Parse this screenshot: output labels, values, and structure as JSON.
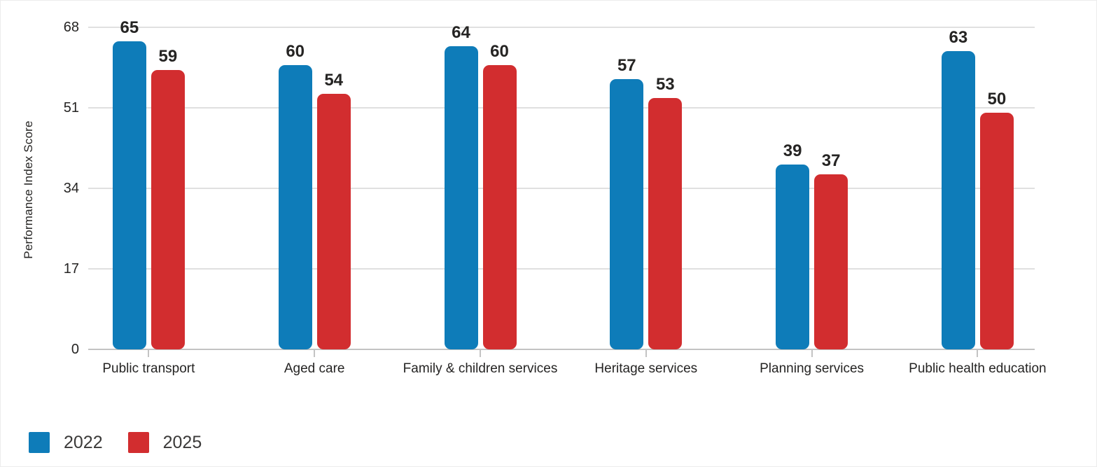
{
  "chart_data": {
    "type": "bar",
    "title": "",
    "xlabel": "",
    "ylabel": "Performance Index Score",
    "categories": [
      "Public transport",
      "Aged care",
      "Family & children services",
      "Heritage services",
      "Planning services",
      "Public health education"
    ],
    "series": [
      {
        "name": "2022",
        "color": "#0e7cb9",
        "values": [
          65,
          60,
          64,
          57,
          39,
          63
        ]
      },
      {
        "name": "2025",
        "color": "#d22d2f",
        "values": [
          59,
          54,
          60,
          53,
          37,
          50
        ]
      }
    ],
    "yticks": [
      0,
      17,
      34,
      51,
      68
    ],
    "ylim": [
      0,
      68
    ],
    "grid": true,
    "value_labels": true,
    "legend_position": "bottom-left",
    "text_color": "#252423",
    "gridline_color": "#e0e0e0",
    "axis_color": "#c3c3c3"
  }
}
